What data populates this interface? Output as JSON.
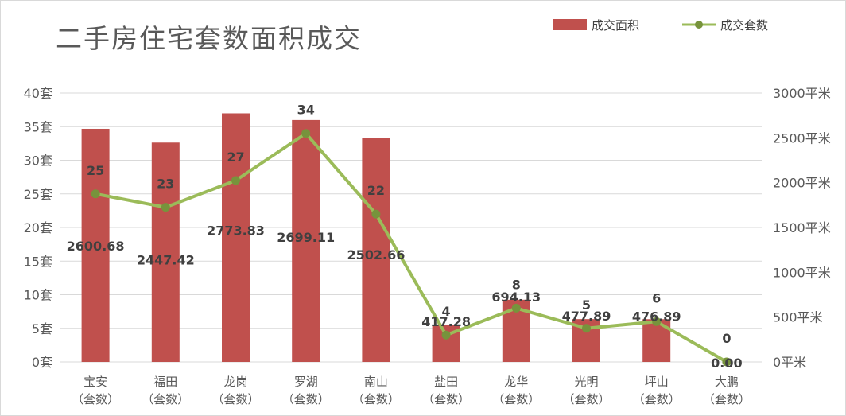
{
  "chart_data": {
    "type": "bar+line",
    "title": "二手房住宅套数面积成交",
    "categories": [
      "宝安",
      "福田",
      "龙岗",
      "罗湖",
      "南山",
      "盐田",
      "龙华",
      "光明",
      "坪山",
      "大鹏"
    ],
    "category_suffix": "（套数）",
    "series": [
      {
        "name": "成交面积",
        "type": "bar",
        "axis": "right",
        "values": [
          2600.68,
          2447.42,
          2773.83,
          2699.11,
          2502.66,
          417.28,
          694.13,
          477.89,
          476.89,
          0.0
        ],
        "labels": [
          "2600.68",
          "2447.42",
          "2773.83",
          "2699.11",
          "2502.66",
          "417.28",
          "694.13",
          "477.89",
          "476.89",
          "0.00"
        ],
        "color": "#c0504d"
      },
      {
        "name": "成交套数",
        "type": "line",
        "axis": "left",
        "values": [
          25,
          23,
          27,
          34,
          22,
          4,
          8,
          5,
          6,
          0
        ],
        "labels": [
          "25",
          "23",
          "27",
          "34",
          "22",
          "4",
          "8",
          "5",
          "6",
          "0"
        ],
        "color": "#9bbb59"
      }
    ],
    "y_left": {
      "min": 0,
      "max": 40,
      "step": 5,
      "unit": "套",
      "ticks": [
        "0套",
        "5套",
        "10套",
        "15套",
        "20套",
        "25套",
        "30套",
        "35套",
        "40套"
      ]
    },
    "y_right": {
      "min": 0,
      "max": 3000,
      "step": 500,
      "unit": "平米",
      "ticks": [
        "0平米",
        "500平米",
        "1000平米",
        "1500平米",
        "2000平米",
        "2500平米",
        "3000平米"
      ]
    },
    "grid": true,
    "legend_position": "top-right"
  }
}
